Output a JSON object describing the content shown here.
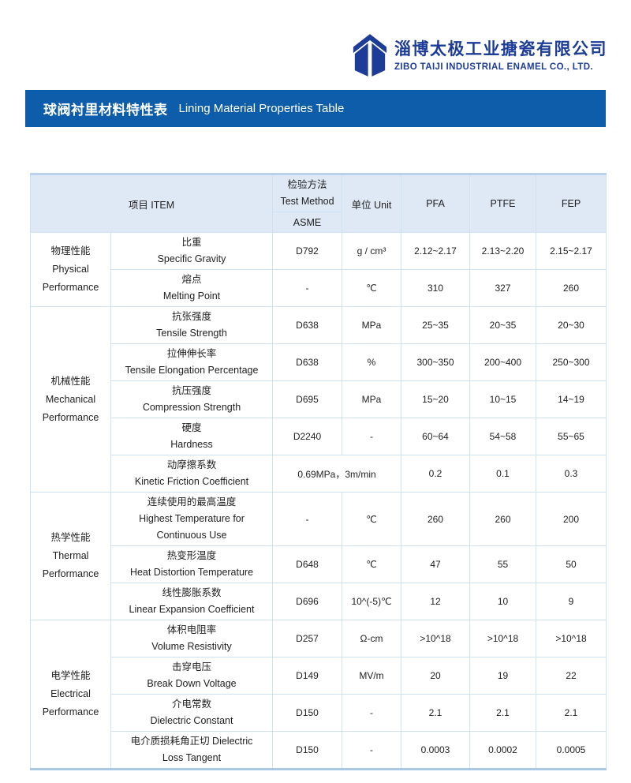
{
  "header": {
    "company_name_zh": "淄博太极工业搪瓷有限公司",
    "company_name_en": "ZIBO TAIJI INDUSTRIAL ENAMEL CO., LTD.",
    "brand_color": "#1d3c97",
    "logo_icon": "taiji-roof-book-mark"
  },
  "title_bar": {
    "title_zh": "球阀衬里材料特性表",
    "title_en": "Lining Material Properties Table",
    "bg_color": "#0d5dab"
  },
  "table": {
    "header": {
      "item": "项目 ITEM",
      "test_method_zh": "检验方法",
      "test_method_en": "Test Method",
      "test_method_sub": "ASME",
      "unit": "单位  Unit",
      "materials": [
        "PFA",
        "PTFE",
        "FEP"
      ]
    },
    "groups": [
      {
        "id": "physical",
        "name_lines": [
          "物理性能",
          "Physical",
          "Performance"
        ],
        "rows": [
          {
            "item_lines": [
              "比重",
              "Specific Gravity"
            ],
            "method": "D792",
            "unit": "g / cm³",
            "pfa": "2.12~2.17",
            "ptfe": "2.13~2.20",
            "fep": "2.15~2.17"
          },
          {
            "item_lines": [
              "熔点",
              "Melting Point"
            ],
            "method": "-",
            "unit": "℃",
            "pfa": "310",
            "ptfe": "327",
            "fep": "260"
          }
        ]
      },
      {
        "id": "mechanical",
        "name_lines": [
          "机械性能",
          "Mechanical",
          "Performance"
        ],
        "rows": [
          {
            "item_lines": [
              "抗张强度",
              "Tensile Strength"
            ],
            "method": "D638",
            "unit": "MPa",
            "pfa": "25~35",
            "ptfe": "20~35",
            "fep": "20~30"
          },
          {
            "item_lines": [
              "拉伸伸长率",
              "Tensile Elongation Percentage"
            ],
            "method": "D638",
            "unit": "%",
            "pfa": "300~350",
            "ptfe": "200~400",
            "fep": "250~300"
          },
          {
            "item_lines": [
              "抗压强度",
              "Compression Strength"
            ],
            "method": "D695",
            "unit": "MPa",
            "pfa": "15~20",
            "ptfe": "10~15",
            "fep": "14~19"
          },
          {
            "item_lines": [
              "硬度",
              "Hardness"
            ],
            "method": "D2240",
            "unit": "-",
            "pfa": "60~64",
            "ptfe": "54~58",
            "fep": "55~65"
          },
          {
            "item_lines": [
              "动摩擦系数",
              "Kinetic Friction Coefficient"
            ],
            "method": "0.69MPa，3m/min",
            "method_colspan": 2,
            "pfa": "0.2",
            "ptfe": "0.1",
            "fep": "0.3"
          }
        ]
      },
      {
        "id": "thermal",
        "name_lines": [
          "热学性能",
          "Thermal",
          "Performance"
        ],
        "rows": [
          {
            "item_lines": [
              "连续使用的最高温度",
              "Highest Temperature for",
              "Continuous Use"
            ],
            "method": "-",
            "unit": "℃",
            "pfa": "260",
            "ptfe": "260",
            "fep": "200"
          },
          {
            "item_lines": [
              "热变形温度",
              "Heat Distortion Temperature"
            ],
            "method": "D648",
            "unit": "℃",
            "pfa": "47",
            "ptfe": "55",
            "fep": "50"
          },
          {
            "item_lines": [
              "线性膨胀系数",
              "Linear Expansion Coefficient"
            ],
            "method": "D696",
            "unit": "10^(-5)℃",
            "pfa": "12",
            "ptfe": "10",
            "fep": "9"
          }
        ]
      },
      {
        "id": "electrical",
        "name_lines": [
          "电学性能",
          "Electrical",
          "Performance"
        ],
        "rows": [
          {
            "item_lines": [
              "体积电阻率",
              "Volume Resistivity"
            ],
            "method": "D257",
            "unit": "Ω-cm",
            "pfa": ">10^18",
            "ptfe": ">10^18",
            "fep": ">10^18"
          },
          {
            "item_lines": [
              "击穿电压",
              "Break Down Voltage"
            ],
            "method": "D149",
            "unit": "MV/m",
            "pfa": "20",
            "ptfe": "19",
            "fep": "22"
          },
          {
            "item_lines": [
              "介电常数",
              "Dielectric Constant"
            ],
            "method": "D150",
            "unit": "-",
            "pfa": "2.1",
            "ptfe": "2.1",
            "fep": "2.1"
          },
          {
            "item_lines": [
              "电介质损耗角正切 Dielectric",
              "Loss Tangent"
            ],
            "method": "D150",
            "unit": "-",
            "pfa": "0.0003",
            "ptfe": "0.0002",
            "fep": "0.0005"
          }
        ]
      }
    ]
  }
}
